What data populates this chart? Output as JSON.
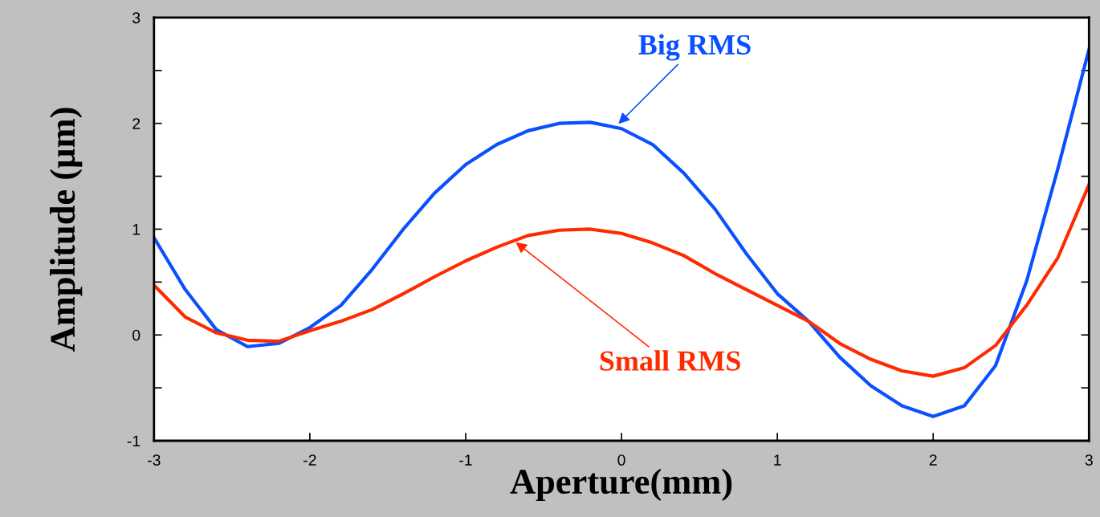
{
  "chart_data": {
    "type": "line",
    "xlabel": "Aperture(mm)",
    "ylabel": "Amplitude (µm)",
    "x": [
      -3,
      -2.8,
      -2.6,
      -2.4,
      -2.2,
      -2.0,
      -1.8,
      -1.6,
      -1.4,
      -1.2,
      -1.0,
      -0.8,
      -0.6,
      -0.4,
      -0.2,
      0,
      0.2,
      0.4,
      0.6,
      0.8,
      1.0,
      1.2,
      1.4,
      1.6,
      1.8,
      2.0,
      2.2,
      2.4,
      2.6,
      2.8,
      3.0
    ],
    "series": [
      {
        "color": "#0a50ff",
        "values": [
          0.92,
          0.43,
          0.05,
          -0.11,
          -0.08,
          0.07,
          0.28,
          0.62,
          1.0,
          1.34,
          1.61,
          1.8,
          1.93,
          2.0,
          2.01,
          1.95,
          1.8,
          1.53,
          1.19,
          0.77,
          0.39,
          0.13,
          -0.21,
          -0.48,
          -0.67,
          -0.77,
          -0.67,
          -0.29,
          0.51,
          1.57,
          2.7
        ]
      },
      {
        "color": "#ff2a00",
        "values": [
          0.47,
          0.17,
          0.02,
          -0.05,
          -0.06,
          0.04,
          0.13,
          0.24,
          0.39,
          0.55,
          0.7,
          0.83,
          0.94,
          0.99,
          1.0,
          0.96,
          0.87,
          0.75,
          0.58,
          0.43,
          0.28,
          0.13,
          -0.08,
          -0.23,
          -0.34,
          -0.39,
          -0.31,
          -0.1,
          0.28,
          0.73,
          1.42
        ]
      }
    ],
    "annotations": [
      {
        "text": "Big RMS",
        "x": -0.03,
        "y": 1.98
      },
      {
        "text": "Small RMS",
        "x": -0.69,
        "y": 0.89
      }
    ],
    "xlim": [
      -3,
      3
    ],
    "ylim": [
      -1,
      3
    ],
    "xticks": [
      -3,
      -2,
      -1,
      0,
      1,
      2,
      3
    ],
    "yticks": [
      -1,
      {
        "value": -0.5,
        "label": null
      },
      0,
      {
        "value": 0.5,
        "label": null
      },
      1,
      {
        "value": 1.5,
        "label": null
      },
      2,
      {
        "value": 2.5,
        "label": null
      },
      3
    ],
    "grid": false,
    "legend": false,
    "marker": "none",
    "line_style": "solid"
  }
}
